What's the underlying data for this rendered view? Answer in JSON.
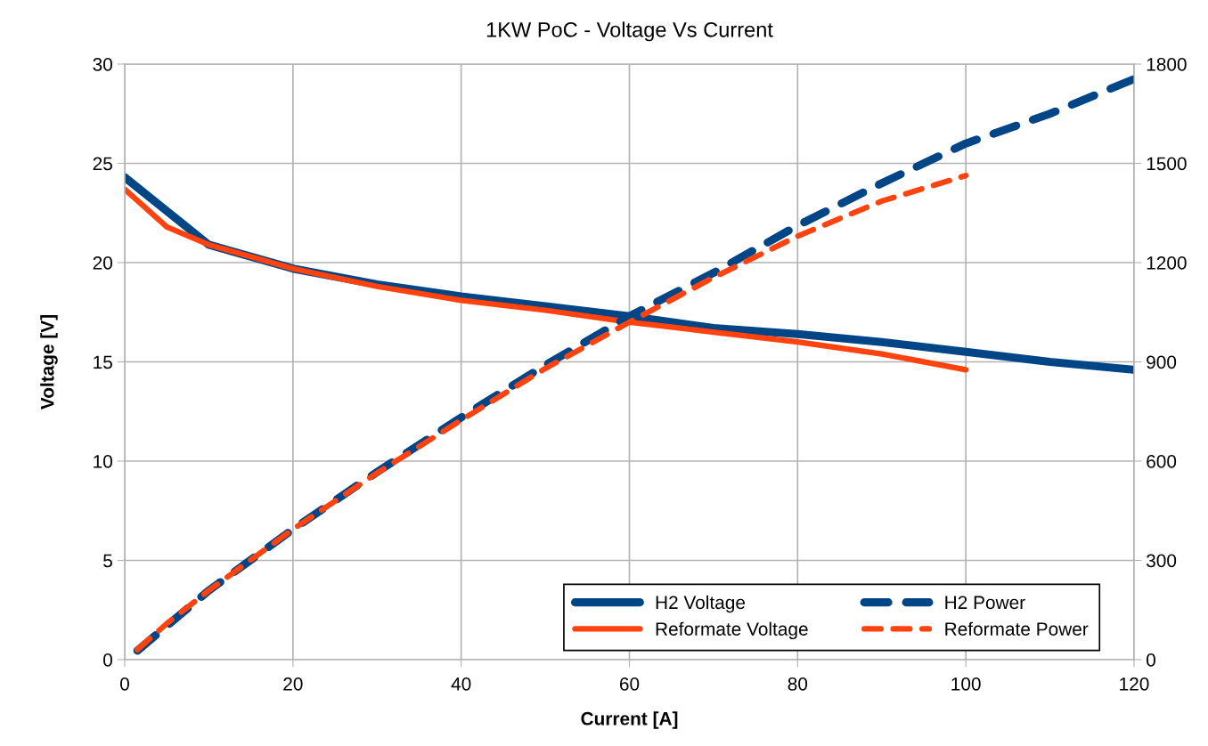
{
  "chart_data": {
    "type": "line",
    "title": "1KW PoC - Voltage Vs Current",
    "xlabel": "Current [A]",
    "ylabel": "Voltage [V]",
    "xlim": [
      0,
      120
    ],
    "xticks": [
      0,
      20,
      40,
      60,
      80,
      100,
      120
    ],
    "ylim": [
      0,
      30
    ],
    "yticks": [
      0,
      5,
      10,
      15,
      20,
      25,
      30
    ],
    "y2lim": [
      0,
      1800
    ],
    "y2ticks": [
      0,
      300,
      600,
      900,
      1200,
      1500,
      1800
    ],
    "grid": true,
    "legend": "bottom right",
    "series": [
      {
        "name": "H2 Voltage",
        "color": "#004586",
        "line_style": "solid",
        "x": [
          0,
          10,
          20,
          30,
          40,
          50,
          60,
          70,
          80,
          90,
          100,
          110,
          120
        ],
        "values": [
          24.3,
          20.9,
          19.7,
          18.9,
          18.3,
          17.8,
          17.3,
          16.7,
          16.4,
          16.0,
          15.5,
          15.0,
          14.6
        ]
      },
      {
        "name": "Reformate Voltage",
        "color": "#ff420e",
        "line_style": "solid",
        "x": [
          0,
          5,
          10,
          20,
          30,
          40,
          50,
          60,
          70,
          80,
          90,
          100
        ],
        "values": [
          23.7,
          21.8,
          20.9,
          19.7,
          18.8,
          18.1,
          17.6,
          17.0,
          16.5,
          16.0,
          15.4,
          14.6
        ]
      },
      {
        "name": "H2 Power",
        "color": "#004586",
        "line_style": "dashed",
        "axis": "y2",
        "x": [
          1.5,
          10,
          20,
          30,
          40,
          50,
          60,
          70,
          80,
          90,
          100,
          110,
          120
        ],
        "values": [
          27,
          209,
          394,
          567,
          732,
          890,
          1038,
          1169,
          1312,
          1440,
          1560,
          1650,
          1755
        ]
      },
      {
        "name": "Reformate Power",
        "color": "#ff420e",
        "line_style": "dashed",
        "axis": "y2",
        "x": [
          1.5,
          5,
          10,
          20,
          30,
          40,
          50,
          60,
          70,
          80,
          90,
          100
        ],
        "values": [
          30,
          109,
          209,
          394,
          564,
          724,
          880,
          1020,
          1155,
          1280,
          1386,
          1463
        ]
      }
    ]
  }
}
